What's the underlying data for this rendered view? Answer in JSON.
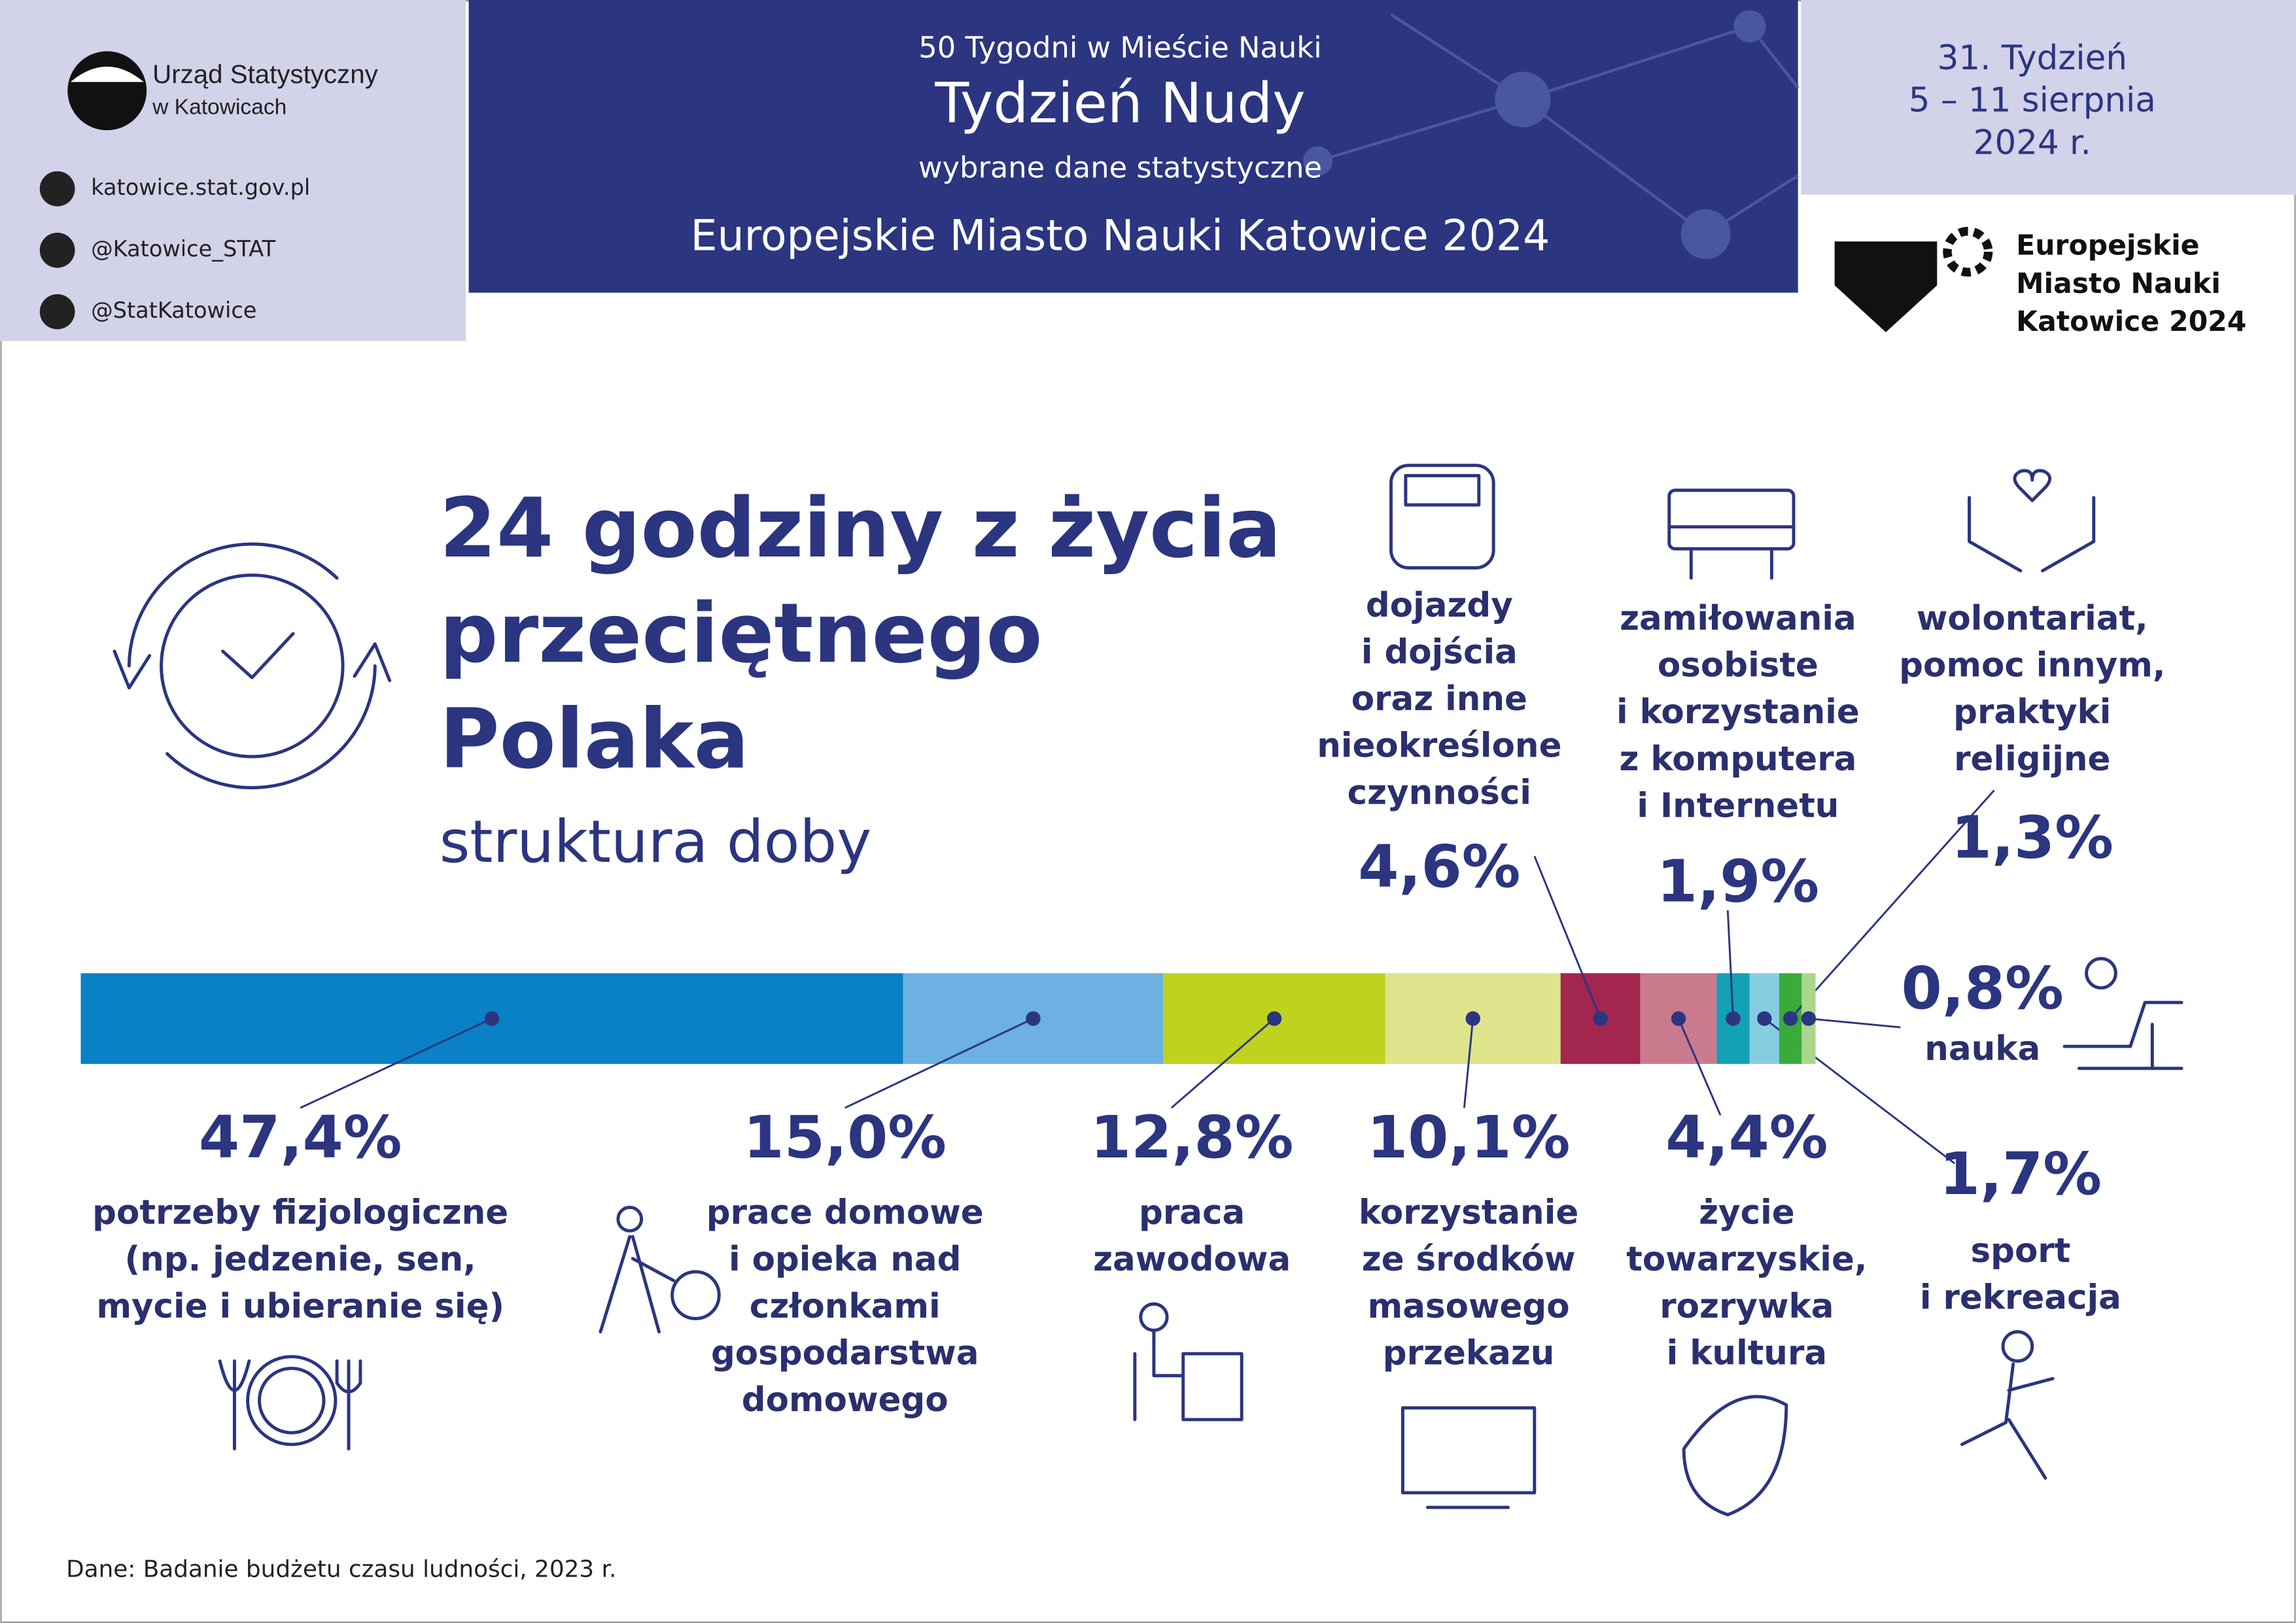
{
  "header": {
    "org": [
      "Urząd Statystyczny",
      "w Katowicach"
    ],
    "links": [
      "katowice.stat.gov.pl",
      "@Katowice_STAT",
      "@StatKatowice"
    ],
    "series_name": "50 Tygodni w Mieście Nauki",
    "week_title": "Tydzień Nudy",
    "subtitle": "wybrane dane statystyczne",
    "event": "Europejskie Miasto Nauki Katowice 2024",
    "date": [
      "31. Tydzień",
      "5 – 11 sierpnia",
      "2024 r."
    ],
    "logo": [
      "Europejskie",
      "Miasto Nauki",
      "Katowice 2024"
    ]
  },
  "chart_data": {
    "type": "stacked-bar",
    "title": [
      "24 godziny z życia",
      "przeciętnego",
      "Polaka"
    ],
    "subtitle": "struktura doby",
    "categories": [
      [
        "potrzeby fizjologiczne",
        "(np. jedzenie, sen,",
        "mycie i ubieranie się)"
      ],
      [
        "prace domowe",
        "i opieka nad",
        "członkami",
        "gospodarstwa",
        "domowego"
      ],
      [
        "praca",
        "zawodowa"
      ],
      [
        "korzystanie",
        "ze środków",
        "masowego",
        "przekazu"
      ],
      [
        "dojazdy",
        "i dojścia",
        "oraz inne",
        "nieokreślone",
        "czynności"
      ],
      [
        "życie",
        "towarzyskie,",
        "rozrywka",
        "i kultura"
      ],
      [
        "zamiłowania",
        "osobiste",
        "i korzystanie",
        "z komputera",
        "i Internetu"
      ],
      [
        "sport",
        "i rekreacja"
      ],
      [
        "wolontariat,",
        "pomoc innym,",
        "praktyki",
        "religijne"
      ],
      [
        "nauka"
      ]
    ],
    "values": [
      47.4,
      15.0,
      12.8,
      10.1,
      4.6,
      4.4,
      1.9,
      1.7,
      1.3,
      0.8
    ],
    "value_labels": [
      "47,4%",
      "15,0%",
      "12,8%",
      "10,1%",
      "4,6%",
      "4,4%",
      "1,9%",
      "1,7%",
      "1,3%",
      "0,8%"
    ],
    "colors": [
      "#0a80c6",
      "#6cb1e1",
      "#bed21e",
      "#dde48c",
      "#a3264f",
      "#c97b8d",
      "#13a1b5",
      "#86cce1",
      "#3aaa3a",
      "#a9d78b"
    ],
    "source": "Dane: Badanie budżetu czasu ludności, 2023 r."
  }
}
